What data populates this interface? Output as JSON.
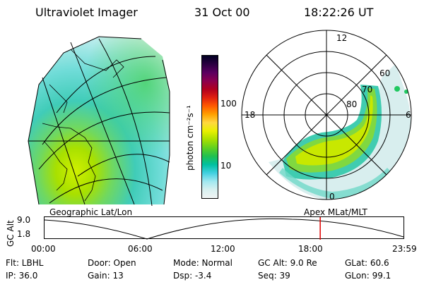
{
  "header": {
    "title": "Ultraviolet Imager",
    "date": "31 Oct 00",
    "time": "18:22:26 UT"
  },
  "colorbar": {
    "label": "photon cm⁻²s⁻¹",
    "ticks": [
      "100",
      "10"
    ],
    "colors": [
      "#000022",
      "#2a0040",
      "#5a0060",
      "#8a0050",
      "#b00020",
      "#e02010",
      "#ff5a00",
      "#ffa000",
      "#ffd840",
      "#e8f000",
      "#a8e000",
      "#60d020",
      "#20c050",
      "#00c0a0",
      "#40d0e0",
      "#a0e8f0",
      "#d8f0f0",
      "#f0f4f4"
    ]
  },
  "geographic_panel": {
    "label": "Geographic Lat/Lon"
  },
  "polar_panel": {
    "label": "Apex MLat/MLT",
    "mlt_labels": [
      "12",
      "18",
      "6",
      "0"
    ],
    "lat_labels": [
      "60",
      "70",
      "80"
    ]
  },
  "timeline": {
    "axis_label": "GC Alt",
    "y_ticks": [
      "9.0",
      "1.8"
    ],
    "x_ticks": [
      "00:00",
      "06:00",
      "12:00",
      "18:00",
      "23:59"
    ],
    "marker_color": "#e00000",
    "marker_time_fraction": 0.765
  },
  "info": {
    "flt": "Flt: LBHL",
    "ip": "IP: 36.0",
    "door": "Door: Open",
    "gain": "Gain: 13",
    "mode": "Mode: Normal",
    "dsp": "Dsp:   -3.4",
    "gcalt": "GC Alt: 9.0 Re",
    "seq": "Seq: 39",
    "glat": "GLat:  60.6",
    "glon": "GLon:  99.1"
  }
}
